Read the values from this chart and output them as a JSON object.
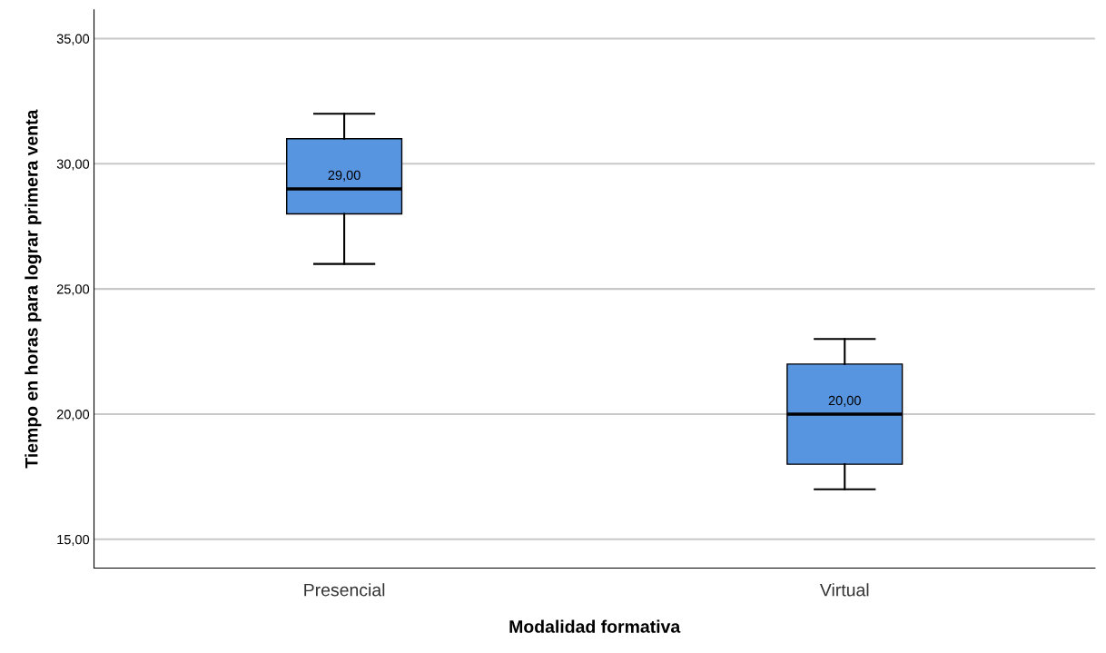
{
  "chart_data": {
    "type": "box",
    "xlabel": "Modalidad formativa",
    "ylabel": "Tiempo en horas para lograr primera venta",
    "categories": [
      "Presencial",
      "Virtual"
    ],
    "boxes": [
      {
        "low": 26,
        "q1": 28,
        "median": 29,
        "q3": 31,
        "high": 32
      },
      {
        "low": 17,
        "q1": 18,
        "median": 20,
        "q3": 22,
        "high": 23
      }
    ],
    "color": "#5895e1",
    "ylim": [
      13.85,
      36.15
    ],
    "yticks": [
      {
        "value": 15,
        "label": "15,00"
      },
      {
        "value": 20,
        "label": "20,00"
      },
      {
        "value": 25,
        "label": "25,00"
      },
      {
        "value": 30,
        "label": "30,00"
      },
      {
        "value": 35,
        "label": "35,00"
      }
    ],
    "annotations": [
      {
        "text": "29,00",
        "x": "Presencial",
        "y": 29
      },
      {
        "text": "20,00",
        "x": "Virtual",
        "y": 20
      }
    ],
    "grid": "y"
  }
}
